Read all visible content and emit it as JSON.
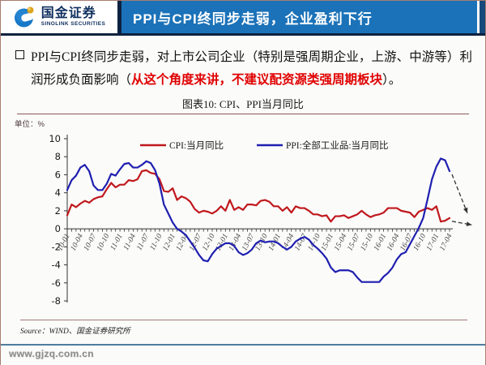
{
  "header": {
    "logo_cn": "国金证券",
    "logo_en": "SINOLINK SECURITIES",
    "title": "PPI与CPI终同步走弱，企业盈利下行"
  },
  "bullet": {
    "pre": "PPI与CPI终同步走弱，对上市公司企业（特别是强周期企业，上游、中游等）利润形成负面影响（",
    "emphasis": "从这个角度来讲，不建议配资源类强周期板块",
    "post": "）。"
  },
  "figure": {
    "title": "图表10: CPI、PPI当月同比",
    "unit_label": "单位：%"
  },
  "footer": {
    "source": "Source：WIND、国金证券研究所",
    "website": "www.gjzq.com.cn"
  },
  "colors": {
    "banner_blue": "#1b72b8",
    "header_navy": "#0d2240",
    "header_strip_blue": "#164a7c",
    "em_red": "#e00000",
    "line_maroon": "#8a5a52",
    "line_maroon_light": "#9e7b76",
    "footer_line_blue": "#4f7d9e",
    "site_gray": "#8f8f8f"
  },
  "chart_data": {
    "type": "line",
    "title": "图表10: CPI、PPI当月同比",
    "unit": "%",
    "x_frequency": "monthly",
    "x_start": "2010-01",
    "x_tick_every": 3,
    "x_tick_labels": [
      "10-01",
      "10-04",
      "10-07",
      "10-10",
      "11-01",
      "11-04",
      "11-07",
      "11-10",
      "12-01",
      "12-04",
      "12-07",
      "12-10",
      "13-01",
      "13-04",
      "13-07",
      "13-10",
      "14-01",
      "14-04",
      "14-07",
      "14-10",
      "15-01",
      "15-04",
      "15-07",
      "15-10",
      "16-01",
      "16-04",
      "16-07",
      "16-10",
      "17-01",
      "17-04"
    ],
    "ylim": [
      -8,
      10
    ],
    "y_ticks": [
      10,
      8,
      6,
      4,
      2,
      0,
      -2,
      -4,
      -6,
      -8
    ],
    "legend_position": "top-center",
    "grid": false,
    "series": [
      {
        "name": "CPI:当月同比",
        "color": "#c0181c",
        "values": [
          1.5,
          2.7,
          2.4,
          2.8,
          3.1,
          2.9,
          3.3,
          3.5,
          3.6,
          4.4,
          5.1,
          4.6,
          4.9,
          4.9,
          5.4,
          5.3,
          5.5,
          6.4,
          6.5,
          6.2,
          6.1,
          5.5,
          4.2,
          4.1,
          4.5,
          3.2,
          3.6,
          3.4,
          3.0,
          2.2,
          1.8,
          2.0,
          1.9,
          1.7,
          2.0,
          2.5,
          2.0,
          3.2,
          2.1,
          2.4,
          2.1,
          2.7,
          2.7,
          2.6,
          3.1,
          3.2,
          3.0,
          2.5,
          2.5,
          2.0,
          2.4,
          1.8,
          2.5,
          2.3,
          2.3,
          2.0,
          1.6,
          1.6,
          1.4,
          1.5,
          0.8,
          1.4,
          1.4,
          1.5,
          1.2,
          1.4,
          1.6,
          2.0,
          1.6,
          1.3,
          1.5,
          1.6,
          1.8,
          2.3,
          2.3,
          2.3,
          2.0,
          1.9,
          1.8,
          1.3,
          1.9,
          2.1,
          2.3,
          2.1,
          2.5,
          0.8,
          0.9,
          1.2
        ],
        "forecast_arrow": {
          "dx_months": 4.5,
          "dy_units": -0.4
        }
      },
      {
        "name": "PPI:全部工业品:当月同比",
        "color": "#1f1fb0",
        "values": [
          4.3,
          5.4,
          5.9,
          6.8,
          7.1,
          6.4,
          4.8,
          4.3,
          4.3,
          5.0,
          6.1,
          5.9,
          6.6,
          7.2,
          7.3,
          6.8,
          6.8,
          7.1,
          7.5,
          7.3,
          6.5,
          5.0,
          2.7,
          1.7,
          0.7,
          0.0,
          -0.3,
          -0.7,
          -1.4,
          -2.1,
          -2.9,
          -3.5,
          -3.6,
          -2.8,
          -2.2,
          -1.9,
          -1.6,
          -1.6,
          -1.9,
          -2.6,
          -2.9,
          -2.7,
          -2.3,
          -1.6,
          -1.3,
          -1.5,
          -1.4,
          -1.4,
          -1.6,
          -2.0,
          -2.3,
          -2.0,
          -1.4,
          -1.1,
          -0.9,
          -1.2,
          -1.8,
          -2.2,
          -2.7,
          -3.3,
          -4.3,
          -4.8,
          -4.6,
          -4.6,
          -4.6,
          -4.8,
          -5.4,
          -5.9,
          -5.9,
          -5.9,
          -5.9,
          -5.9,
          -5.3,
          -4.9,
          -4.3,
          -3.4,
          -2.8,
          -2.6,
          -1.7,
          -0.8,
          0.1,
          1.2,
          3.3,
          5.5,
          6.9,
          7.8,
          7.6,
          6.4
        ],
        "forecast_arrow": {
          "dx_months": 3.5,
          "dy_units": -4.3
        }
      }
    ]
  }
}
